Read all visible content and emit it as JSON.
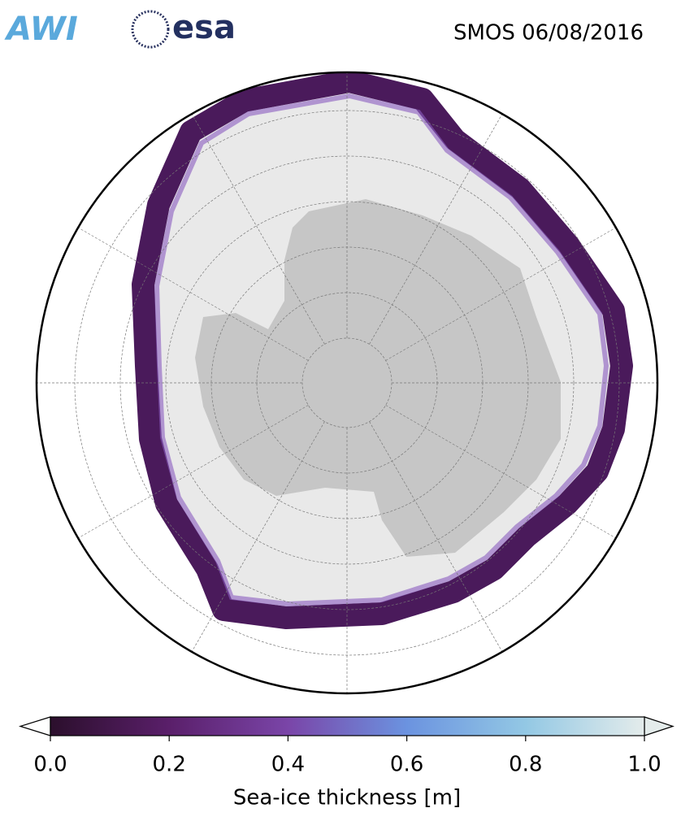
{
  "logos": {
    "awi": "AWI",
    "esa": "esa"
  },
  "title": "SMOS 06/08/2016",
  "colorbar": {
    "label": "Sea-ice thickness [m]",
    "lim": [
      0,
      1
    ],
    "ticks": [
      {
        "value": 0,
        "label": "0.0"
      },
      {
        "value": 0.2,
        "label": "0.2"
      },
      {
        "value": 0.4,
        "label": "0.4"
      },
      {
        "value": 0.6,
        "label": "0.6"
      },
      {
        "value": 0.8,
        "label": "0.8"
      },
      {
        "value": 1,
        "label": "1.0"
      }
    ]
  }
}
